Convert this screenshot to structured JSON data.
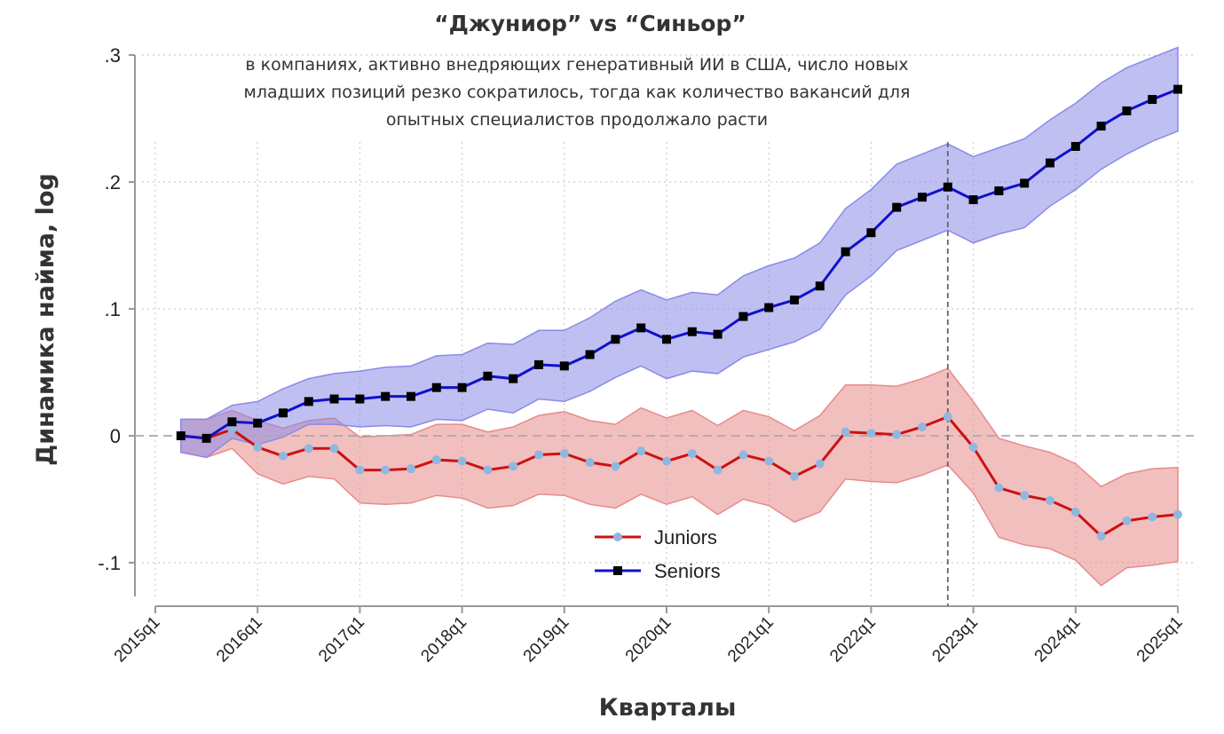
{
  "chart_data": {
    "type": "line",
    "title": "“Джуниор” vs “Синьор”",
    "subtitle": [
      "в компаниях, активно внедряющих генеративный ИИ в США, число новых",
      "младших позиций резко сократилось, тогда как количество вакансий для",
      "опытных специалистов продолжало расти"
    ],
    "xlabel": "Кварталы",
    "ylabel": "Динамика найма, log",
    "x_ticks": [
      "2015q1",
      "2016q1",
      "2017q1",
      "2018q1",
      "2019q1",
      "2020q1",
      "2021q1",
      "2022q1",
      "2023q1",
      "2024q1",
      "2025q1"
    ],
    "y_ticks": [
      {
        "value": 0.3,
        "label": ".3"
      },
      {
        "value": 0.2,
        "label": ".2"
      },
      {
        "value": 0.1,
        "label": ".1"
      },
      {
        "value": 0,
        "label": "0"
      },
      {
        "value": -0.1,
        "label": "-.1"
      }
    ],
    "xlim": [
      "2015q1",
      "2025q1"
    ],
    "ylim": [
      -0.13,
      0.31
    ],
    "grid": true,
    "reference_lines": {
      "horizontal": 0,
      "vertical": "2022q4"
    },
    "legend_position": "bottom-center",
    "x": [
      "2015q2",
      "2015q3",
      "2015q4",
      "2016q1",
      "2016q2",
      "2016q3",
      "2016q4",
      "2017q1",
      "2017q2",
      "2017q3",
      "2017q4",
      "2018q1",
      "2018q2",
      "2018q3",
      "2018q4",
      "2019q1",
      "2019q2",
      "2019q3",
      "2019q4",
      "2020q1",
      "2020q2",
      "2020q3",
      "2020q4",
      "2021q1",
      "2021q2",
      "2021q3",
      "2021q4",
      "2022q1",
      "2022q2",
      "2022q3",
      "2022q4",
      "2023q1",
      "2023q2",
      "2023q3",
      "2023q4",
      "2024q1",
      "2024q2",
      "2024q3",
      "2024q4",
      "2025q1"
    ],
    "series": [
      {
        "name": "Juniors",
        "color": "#cc1111",
        "marker_color": "#8fb8e0",
        "band_color": "#e88a8a",
        "values": [
          0,
          -0.002,
          0.005,
          -0.009,
          -0.016,
          -0.01,
          -0.01,
          -0.027,
          -0.027,
          -0.026,
          -0.019,
          -0.02,
          -0.027,
          -0.024,
          -0.015,
          -0.014,
          -0.021,
          -0.024,
          -0.012,
          -0.02,
          -0.014,
          -0.027,
          -0.015,
          -0.02,
          -0.032,
          -0.022,
          0.003,
          0.002,
          0.001,
          0.007,
          0.015,
          -0.009,
          -0.041,
          -0.047,
          -0.051,
          -0.06,
          -0.079,
          -0.067,
          -0.064,
          -0.062
        ],
        "upper": [
          0.013,
          0.013,
          0.02,
          0.012,
          0.006,
          0.012,
          0.014,
          -0.001,
          0.0,
          0.001,
          0.009,
          0.009,
          0.003,
          0.007,
          0.016,
          0.019,
          0.012,
          0.009,
          0.022,
          0.014,
          0.02,
          0.008,
          0.02,
          0.015,
          0.004,
          0.016,
          0.04,
          0.04,
          0.039,
          0.045,
          0.053,
          0.027,
          -0.002,
          -0.008,
          -0.013,
          -0.022,
          -0.04,
          -0.03,
          -0.026,
          -0.025
        ],
        "lower": [
          -0.013,
          -0.017,
          -0.01,
          -0.03,
          -0.038,
          -0.032,
          -0.034,
          -0.053,
          -0.054,
          -0.053,
          -0.047,
          -0.049,
          -0.057,
          -0.055,
          -0.046,
          -0.047,
          -0.054,
          -0.057,
          -0.046,
          -0.054,
          -0.048,
          -0.062,
          -0.05,
          -0.055,
          -0.068,
          -0.06,
          -0.034,
          -0.036,
          -0.037,
          -0.031,
          -0.023,
          -0.045,
          -0.08,
          -0.086,
          -0.089,
          -0.098,
          -0.118,
          -0.104,
          -0.102,
          -0.099
        ]
      },
      {
        "name": "Seniors",
        "color": "#1010cc",
        "marker_color": "#000000",
        "band_color": "#8a8ae8",
        "values": [
          0,
          -0.002,
          0.011,
          0.01,
          0.018,
          0.027,
          0.029,
          0.029,
          0.031,
          0.031,
          0.038,
          0.038,
          0.047,
          0.045,
          0.056,
          0.055,
          0.064,
          0.076,
          0.085,
          0.076,
          0.082,
          0.08,
          0.094,
          0.101,
          0.107,
          0.118,
          0.145,
          0.16,
          0.18,
          0.188,
          0.196,
          0.186,
          0.193,
          0.199,
          0.215,
          0.228,
          0.244,
          0.256,
          0.265,
          0.273
        ],
        "upper": [
          0.013,
          0.013,
          0.024,
          0.027,
          0.037,
          0.045,
          0.049,
          0.051,
          0.054,
          0.055,
          0.063,
          0.064,
          0.073,
          0.072,
          0.083,
          0.083,
          0.093,
          0.106,
          0.115,
          0.107,
          0.113,
          0.111,
          0.126,
          0.134,
          0.14,
          0.152,
          0.179,
          0.194,
          0.214,
          0.222,
          0.23,
          0.22,
          0.227,
          0.234,
          0.249,
          0.262,
          0.278,
          0.29,
          0.298,
          0.306
        ],
        "lower": [
          -0.013,
          -0.017,
          -0.002,
          -0.007,
          -0.001,
          0.009,
          0.009,
          0.007,
          0.008,
          0.007,
          0.013,
          0.012,
          0.021,
          0.018,
          0.029,
          0.027,
          0.035,
          0.046,
          0.055,
          0.045,
          0.051,
          0.049,
          0.062,
          0.068,
          0.074,
          0.084,
          0.111,
          0.126,
          0.146,
          0.154,
          0.162,
          0.152,
          0.159,
          0.164,
          0.181,
          0.194,
          0.21,
          0.222,
          0.232,
          0.24
        ]
      }
    ]
  }
}
